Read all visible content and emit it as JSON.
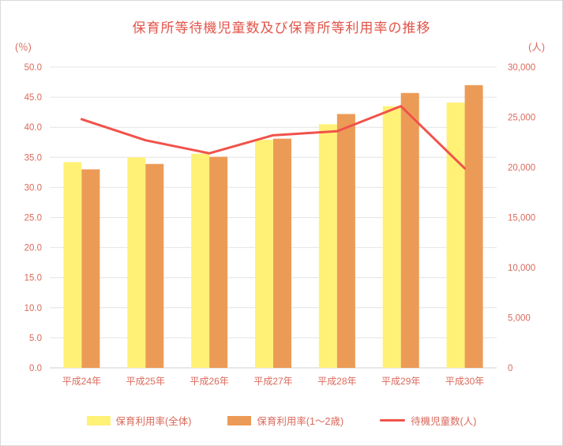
{
  "colors": {
    "title_text": "#e2544a",
    "axis_text": "#d96a5c",
    "grid_line": "#e4e4e4",
    "axis_line": "#cfcfcf",
    "bar_yellow": "#fff176",
    "bar_orange": "#ec9b56",
    "line_red": "#f1524b"
  },
  "chart_data": {
    "type": "bar",
    "title": "保育所等待機児童数及び保育所等利用率の推移",
    "categories": [
      "平成24年",
      "平成25年",
      "平成26年",
      "平成27年",
      "平成28年",
      "平成29年",
      "平成30年"
    ],
    "series": [
      {
        "name": "保育利用率(全体)",
        "kind": "bar",
        "axis": "left",
        "color": "#fff176",
        "values": [
          34.2,
          35.0,
          35.6,
          37.9,
          40.5,
          43.5,
          44.1
        ]
      },
      {
        "name": "保育利用率(1～2歳)",
        "kind": "bar",
        "axis": "left",
        "color": "#ec9b56",
        "values": [
          33.0,
          33.9,
          35.1,
          38.1,
          42.2,
          45.7,
          47.0
        ]
      },
      {
        "name": "待機児童数(人)",
        "kind": "line",
        "axis": "right",
        "color": "#f1524b",
        "values": [
          24800,
          22700,
          21400,
          23200,
          23600,
          26100,
          19900
        ]
      }
    ],
    "left_axis": {
      "unit": "(％)",
      "min": 0,
      "max": 50,
      "step": 5,
      "tick_labels": [
        "0.0",
        "5.0",
        "10.0",
        "15.0",
        "20.0",
        "25.0",
        "30.0",
        "35.0",
        "40.0",
        "45.0",
        "50.0"
      ]
    },
    "right_axis": {
      "unit": "(人)",
      "min": 0,
      "max": 30000,
      "step": 5000,
      "tick_labels": [
        "0",
        "5,000",
        "10,000",
        "15,000",
        "20,000",
        "25,000",
        "30,000"
      ]
    },
    "grid": true,
    "legend_position": "bottom"
  }
}
